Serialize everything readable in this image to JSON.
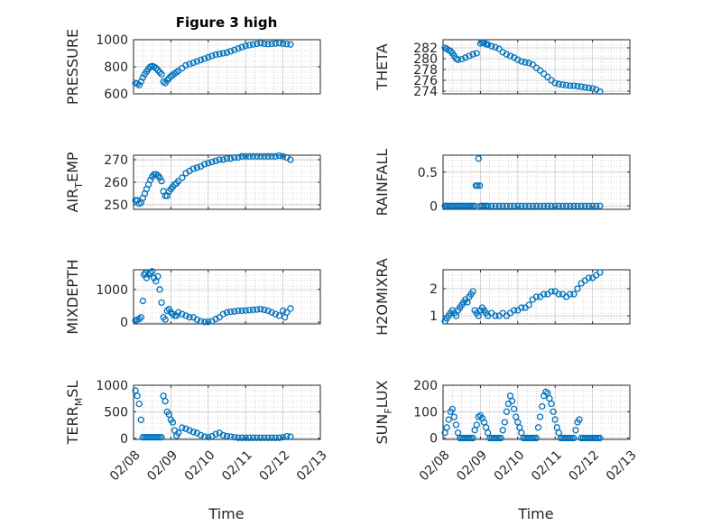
{
  "figure": {
    "title": "Figure 3 high",
    "xlabel": "Time",
    "marker_color": "#0072BD"
  },
  "chart_data": [
    {
      "type": "scatter",
      "ylabel": "PRESSURE",
      "xlim": [
        0,
        5
      ],
      "ylim": [
        600,
        1000
      ],
      "yticks": [
        600,
        800,
        1000
      ],
      "yticklabels": [
        "600",
        "800",
        "1000"
      ],
      "xticks": [
        0,
        1,
        2,
        3,
        4,
        5
      ],
      "xticklabels": [
        "02/08",
        "02/09",
        "02/10",
        "02/11",
        "02/12",
        "02/13"
      ],
      "show_xticklabels": false,
      "x": [
        0.05,
        0.1,
        0.15,
        0.2,
        0.25,
        0.3,
        0.35,
        0.4,
        0.45,
        0.5,
        0.55,
        0.6,
        0.65,
        0.7,
        0.75,
        0.8,
        0.85,
        0.9,
        0.95,
        1.0,
        1.05,
        1.1,
        1.15,
        1.2,
        1.3,
        1.4,
        1.5,
        1.6,
        1.7,
        1.8,
        1.9,
        2.0,
        2.1,
        2.2,
        2.3,
        2.4,
        2.5,
        2.6,
        2.7,
        2.8,
        2.9,
        3.0,
        3.1,
        3.2,
        3.3,
        3.4,
        3.5,
        3.6,
        3.7,
        3.8,
        3.9,
        4.0,
        4.1,
        4.2
      ],
      "y": [
        680,
        675,
        665,
        690,
        720,
        745,
        765,
        785,
        800,
        805,
        800,
        790,
        775,
        760,
        745,
        690,
        680,
        700,
        715,
        730,
        740,
        750,
        760,
        770,
        790,
        810,
        820,
        830,
        840,
        850,
        860,
        870,
        880,
        890,
        895,
        900,
        905,
        915,
        925,
        935,
        945,
        955,
        960,
        965,
        970,
        975,
        970,
        968,
        970,
        972,
        975,
        970,
        968,
        965
      ]
    },
    {
      "type": "scatter",
      "ylabel": "THETA",
      "xlim": [
        0,
        5
      ],
      "ylim": [
        273.5,
        283.5
      ],
      "yticks": [
        274,
        276,
        278,
        280,
        282
      ],
      "yticklabels": [
        "274",
        "276",
        "278",
        "280",
        "282"
      ],
      "xticks": [
        0,
        1,
        2,
        3,
        4,
        5
      ],
      "xticklabels": [
        "02/08",
        "02/09",
        "02/10",
        "02/11",
        "02/12",
        "02/13"
      ],
      "show_xticklabels": false,
      "x": [
        0.05,
        0.1,
        0.15,
        0.2,
        0.25,
        0.3,
        0.35,
        0.4,
        0.5,
        0.6,
        0.7,
        0.8,
        0.9,
        1.0,
        1.05,
        1.1,
        1.15,
        1.2,
        1.3,
        1.4,
        1.5,
        1.6,
        1.7,
        1.8,
        1.9,
        2.0,
        2.1,
        2.2,
        2.3,
        2.4,
        2.5,
        2.6,
        2.7,
        2.8,
        2.9,
        3.0,
        3.1,
        3.2,
        3.3,
        3.4,
        3.5,
        3.6,
        3.7,
        3.8,
        3.9,
        4.0,
        4.1,
        4.2
      ],
      "y": [
        282,
        281.8,
        281.6,
        281.4,
        281,
        280.5,
        280,
        279.8,
        279.9,
        280.2,
        280.5,
        280.8,
        281,
        282.8,
        283,
        282.9,
        282.7,
        282.6,
        282.3,
        282.1,
        281.8,
        281.2,
        280.8,
        280.5,
        280.2,
        279.8,
        279.5,
        279.3,
        279.2,
        278.9,
        278.3,
        277.8,
        277.2,
        276.6,
        276,
        275.5,
        275.3,
        275.2,
        275.1,
        275,
        275,
        274.9,
        274.8,
        274.7,
        274.6,
        274.5,
        274.3,
        273.9
      ]
    },
    {
      "type": "scatter",
      "ylabel": "AIR",
      "ylabel_sub": "T",
      "ylabel_suffix": "EMP",
      "xlim": [
        0,
        5
      ],
      "ylim": [
        248,
        272
      ],
      "yticks": [
        250,
        260,
        270
      ],
      "yticklabels": [
        "250",
        "260",
        "270"
      ],
      "xticks": [
        0,
        1,
        2,
        3,
        4,
        5
      ],
      "xticklabels": [
        "02/08",
        "02/09",
        "02/10",
        "02/11",
        "02/12",
        "02/13"
      ],
      "show_xticklabels": false,
      "x": [
        0.05,
        0.1,
        0.15,
        0.2,
        0.25,
        0.3,
        0.35,
        0.4,
        0.45,
        0.5,
        0.55,
        0.6,
        0.65,
        0.7,
        0.75,
        0.8,
        0.85,
        0.9,
        0.95,
        1.0,
        1.05,
        1.1,
        1.15,
        1.2,
        1.3,
        1.4,
        1.5,
        1.6,
        1.7,
        1.8,
        1.9,
        2.0,
        2.1,
        2.2,
        2.3,
        2.4,
        2.5,
        2.6,
        2.7,
        2.8,
        2.9,
        3.0,
        3.1,
        3.2,
        3.3,
        3.4,
        3.5,
        3.6,
        3.7,
        3.8,
        3.9,
        4.0,
        4.1,
        4.2
      ],
      "y": [
        252,
        252,
        250.5,
        251,
        253,
        255,
        257,
        259,
        261,
        262.5,
        263.5,
        263.5,
        263,
        262,
        260.5,
        256,
        254,
        254,
        256,
        257,
        258,
        259,
        259.5,
        260.5,
        262,
        264,
        265,
        266,
        266.5,
        267,
        268,
        268.5,
        269,
        269.5,
        270,
        270,
        270.5,
        270.5,
        271,
        271,
        271.5,
        271.5,
        271.5,
        271.5,
        271.5,
        271.5,
        271.5,
        271.5,
        271.5,
        271.5,
        271.8,
        271.5,
        271,
        270
      ]
    },
    {
      "type": "scatter",
      "ylabel": "RAINFALL",
      "xlim": [
        0,
        5
      ],
      "ylim": [
        -0.05,
        0.75
      ],
      "yticks": [
        0,
        0.5
      ],
      "yticklabels": [
        "0",
        "0.5"
      ],
      "xticks": [
        0,
        1,
        2,
        3,
        4,
        5
      ],
      "xticklabels": [
        "02/08",
        "02/09",
        "02/10",
        "02/11",
        "02/12",
        "02/13"
      ],
      "show_xticklabels": false,
      "x": [
        0.05,
        0.1,
        0.15,
        0.2,
        0.25,
        0.3,
        0.35,
        0.4,
        0.45,
        0.5,
        0.55,
        0.6,
        0.65,
        0.7,
        0.75,
        0.8,
        0.85,
        0.88,
        0.92,
        0.95,
        0.98,
        1.0,
        1.05,
        1.1,
        1.15,
        1.2,
        1.3,
        1.4,
        1.5,
        1.6,
        1.7,
        1.8,
        1.9,
        2.0,
        2.1,
        2.2,
        2.3,
        2.4,
        2.5,
        2.6,
        2.7,
        2.8,
        2.9,
        3.0,
        3.1,
        3.2,
        3.3,
        3.4,
        3.5,
        3.6,
        3.7,
        3.8,
        3.9,
        4.0,
        4.1,
        4.2
      ],
      "y": [
        0,
        0,
        0,
        0,
        0,
        0,
        0,
        0,
        0,
        0,
        0,
        0,
        0,
        0,
        0,
        0,
        0,
        0.3,
        0.3,
        0.7,
        0.3,
        0,
        0,
        0,
        0,
        0,
        0,
        0,
        0,
        0,
        0,
        0,
        0,
        0,
        0,
        0,
        0,
        0,
        0,
        0,
        0,
        0,
        0,
        0,
        0,
        0,
        0,
        0,
        0,
        0,
        0,
        0,
        0,
        0,
        0,
        0
      ]
    },
    {
      "type": "scatter",
      "ylabel": "MIXDEPTH",
      "xlim": [
        0,
        5
      ],
      "ylim": [
        -50,
        1600
      ],
      "yticks": [
        0,
        1000
      ],
      "yticklabels": [
        "0",
        "1000"
      ],
      "xticks": [
        0,
        1,
        2,
        3,
        4,
        5
      ],
      "xticklabels": [
        "02/08",
        "02/09",
        "02/10",
        "02/11",
        "02/12",
        "02/13"
      ],
      "show_xticklabels": false,
      "x": [
        0.05,
        0.1,
        0.15,
        0.2,
        0.25,
        0.28,
        0.32,
        0.35,
        0.4,
        0.45,
        0.5,
        0.55,
        0.6,
        0.65,
        0.7,
        0.75,
        0.8,
        0.85,
        0.9,
        0.95,
        1.0,
        1.05,
        1.1,
        1.15,
        1.2,
        1.3,
        1.4,
        1.5,
        1.6,
        1.7,
        1.8,
        1.9,
        2.0,
        2.1,
        2.2,
        2.3,
        2.4,
        2.5,
        2.6,
        2.7,
        2.8,
        2.9,
        3.0,
        3.1,
        3.2,
        3.3,
        3.4,
        3.5,
        3.6,
        3.7,
        3.8,
        3.9,
        4.0,
        4.05,
        4.1,
        4.2
      ],
      "y": [
        50,
        80,
        100,
        150,
        650,
        1450,
        1500,
        1350,
        1450,
        1500,
        1550,
        1350,
        1250,
        1400,
        1000,
        600,
        150,
        80,
        350,
        400,
        300,
        250,
        200,
        200,
        300,
        250,
        200,
        150,
        150,
        80,
        30,
        10,
        10,
        30,
        100,
        150,
        250,
        300,
        320,
        330,
        350,
        350,
        360,
        370,
        380,
        390,
        400,
        380,
        350,
        300,
        250,
        200,
        350,
        150,
        300,
        420
      ]
    },
    {
      "type": "scatter",
      "ylabel": "H2OMIXRA",
      "xlim": [
        0,
        5
      ],
      "ylim": [
        0.7,
        2.7
      ],
      "yticks": [
        1,
        2
      ],
      "yticklabels": [
        "1",
        "2"
      ],
      "xticks": [
        0,
        1,
        2,
        3,
        4,
        5
      ],
      "xticklabels": [
        "02/08",
        "02/09",
        "02/10",
        "02/11",
        "02/12",
        "02/13"
      ],
      "show_xticklabels": false,
      "x": [
        0.05,
        0.1,
        0.15,
        0.2,
        0.25,
        0.3,
        0.35,
        0.4,
        0.45,
        0.5,
        0.55,
        0.6,
        0.65,
        0.7,
        0.75,
        0.8,
        0.85,
        0.9,
        0.95,
        1.0,
        1.05,
        1.1,
        1.15,
        1.2,
        1.3,
        1.4,
        1.5,
        1.6,
        1.7,
        1.8,
        1.9,
        2.0,
        2.1,
        2.2,
        2.3,
        2.4,
        2.5,
        2.6,
        2.7,
        2.8,
        2.9,
        3.0,
        3.1,
        3.2,
        3.3,
        3.4,
        3.5,
        3.6,
        3.7,
        3.8,
        3.9,
        4.0,
        4.1,
        4.2
      ],
      "y": [
        0.8,
        0.9,
        1.0,
        1.1,
        1.2,
        1.1,
        1.0,
        1.2,
        1.3,
        1.4,
        1.5,
        1.6,
        1.5,
        1.7,
        1.8,
        1.9,
        1.2,
        1.1,
        1.0,
        1.2,
        1.3,
        1.2,
        1.1,
        1.0,
        1.1,
        1.0,
        1.0,
        1.1,
        1.0,
        1.1,
        1.2,
        1.2,
        1.3,
        1.3,
        1.4,
        1.6,
        1.7,
        1.7,
        1.8,
        1.8,
        1.9,
        1.9,
        1.8,
        1.8,
        1.7,
        1.8,
        1.8,
        2.0,
        2.2,
        2.3,
        2.4,
        2.4,
        2.5,
        2.6
      ]
    },
    {
      "type": "scatter",
      "ylabel": "TERR",
      "ylabel_sub": "M",
      "ylabel_suffix": "SL",
      "xlim": [
        0,
        5
      ],
      "ylim": [
        -20,
        1000
      ],
      "yticks": [
        0,
        500,
        1000
      ],
      "yticklabels": [
        "0",
        "500",
        "1000"
      ],
      "xticks": [
        0,
        1,
        2,
        3,
        4,
        5
      ],
      "xticklabels": [
        "02/08",
        "02/09",
        "02/10",
        "02/11",
        "02/12",
        "02/13"
      ],
      "show_xticklabels": true,
      "x": [
        0.05,
        0.1,
        0.15,
        0.2,
        0.25,
        0.3,
        0.35,
        0.4,
        0.45,
        0.5,
        0.55,
        0.6,
        0.65,
        0.7,
        0.75,
        0.8,
        0.85,
        0.9,
        0.95,
        1.0,
        1.05,
        1.1,
        1.15,
        1.2,
        1.3,
        1.4,
        1.5,
        1.6,
        1.7,
        1.8,
        1.9,
        2.0,
        2.1,
        2.2,
        2.3,
        2.4,
        2.5,
        2.6,
        2.7,
        2.8,
        2.9,
        3.0,
        3.1,
        3.2,
        3.3,
        3.4,
        3.5,
        3.6,
        3.7,
        3.8,
        3.9,
        4.0,
        4.1,
        4.2
      ],
      "y": [
        900,
        800,
        650,
        350,
        20,
        20,
        20,
        20,
        20,
        20,
        20,
        20,
        20,
        20,
        20,
        800,
        700,
        500,
        450,
        350,
        300,
        150,
        50,
        100,
        200,
        180,
        150,
        120,
        100,
        60,
        30,
        20,
        40,
        80,
        100,
        60,
        40,
        30,
        20,
        10,
        10,
        10,
        10,
        10,
        10,
        10,
        10,
        10,
        10,
        10,
        10,
        20,
        40,
        30
      ]
    },
    {
      "type": "scatter",
      "ylabel": "SUN",
      "ylabel_sub": "F",
      "ylabel_suffix": "LUX",
      "xlim": [
        0,
        5
      ],
      "ylim": [
        -5,
        200
      ],
      "yticks": [
        0,
        100,
        200
      ],
      "yticklabels": [
        "0",
        "100",
        "200"
      ],
      "xticks": [
        0,
        1,
        2,
        3,
        4,
        5
      ],
      "xticklabels": [
        "02/08",
        "02/09",
        "02/10",
        "02/11",
        "02/12",
        "02/13"
      ],
      "show_xticklabels": true,
      "x": [
        0.05,
        0.1,
        0.15,
        0.2,
        0.25,
        0.3,
        0.35,
        0.4,
        0.45,
        0.5,
        0.55,
        0.6,
        0.65,
        0.7,
        0.75,
        0.8,
        0.85,
        0.9,
        0.95,
        1.0,
        1.05,
        1.1,
        1.15,
        1.2,
        1.25,
        1.3,
        1.35,
        1.4,
        1.45,
        1.5,
        1.55,
        1.6,
        1.65,
        1.7,
        1.75,
        1.8,
        1.85,
        1.9,
        1.95,
        2.0,
        2.05,
        2.1,
        2.15,
        2.2,
        2.25,
        2.3,
        2.35,
        2.4,
        2.45,
        2.5,
        2.55,
        2.6,
        2.65,
        2.7,
        2.75,
        2.8,
        2.85,
        2.9,
        2.95,
        3.0,
        3.05,
        3.1,
        3.15,
        3.2,
        3.25,
        3.3,
        3.35,
        3.4,
        3.45,
        3.5,
        3.55,
        3.6,
        3.65,
        3.7,
        3.75,
        3.8,
        3.85,
        3.9,
        3.95,
        4.0,
        4.05,
        4.1,
        4.15,
        4.2
      ],
      "y": [
        20,
        40,
        70,
        100,
        110,
        80,
        50,
        20,
        0,
        0,
        0,
        0,
        0,
        0,
        0,
        0,
        30,
        50,
        80,
        85,
        75,
        60,
        40,
        20,
        0,
        0,
        0,
        0,
        0,
        0,
        0,
        30,
        60,
        100,
        130,
        160,
        140,
        110,
        80,
        60,
        40,
        20,
        0,
        0,
        0,
        0,
        0,
        0,
        0,
        0,
        40,
        80,
        120,
        160,
        175,
        170,
        150,
        130,
        100,
        70,
        40,
        20,
        0,
        0,
        0,
        0,
        0,
        0,
        0,
        0,
        30,
        60,
        70,
        0,
        0,
        0,
        0,
        0,
        0,
        0,
        0,
        0,
        0,
        0
      ]
    }
  ]
}
